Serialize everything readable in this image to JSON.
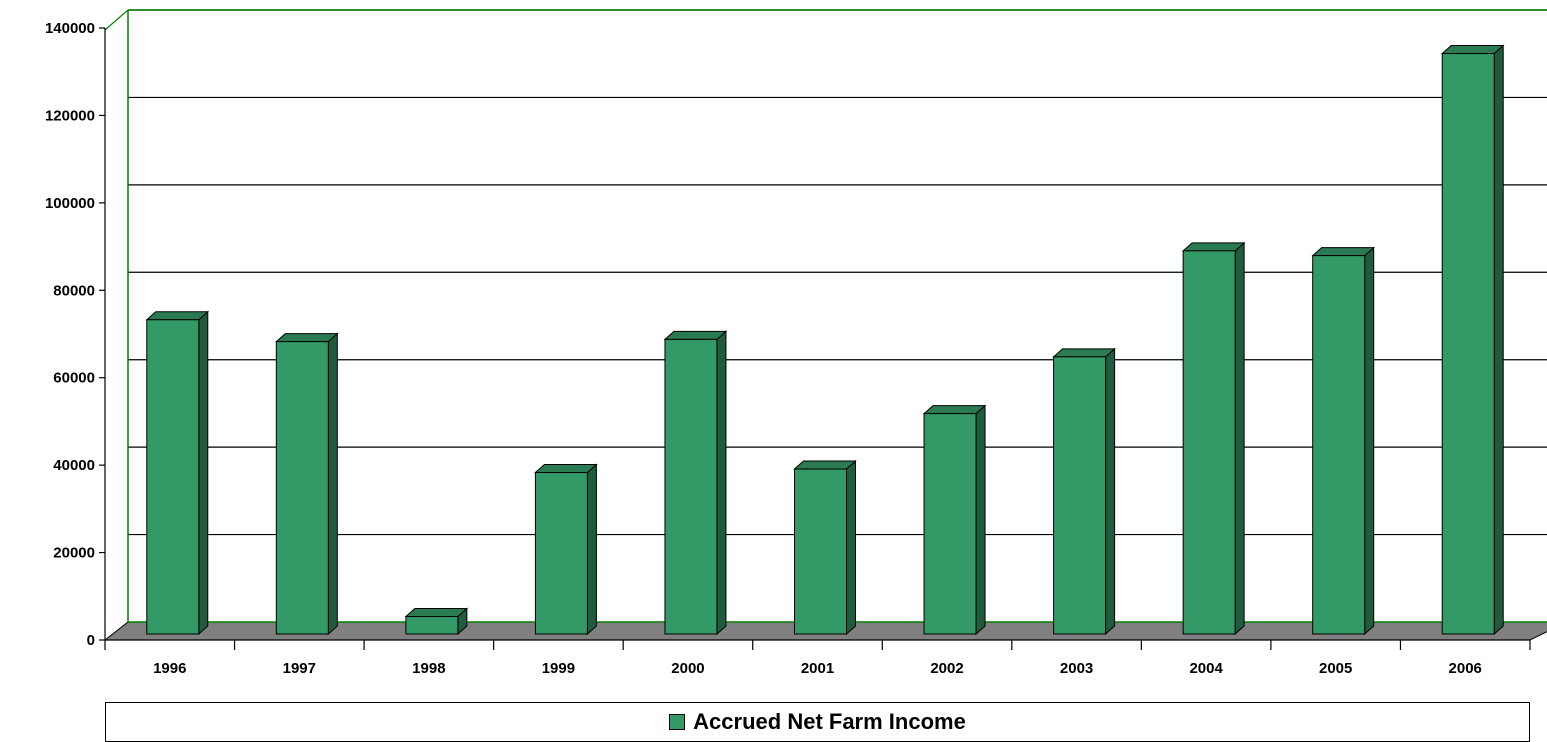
{
  "chart_data": {
    "type": "bar",
    "title": "",
    "xlabel": "",
    "ylabel": "",
    "categories": [
      "1996",
      "1997",
      "1998",
      "1999",
      "2000",
      "2001",
      "2002",
      "2003",
      "2004",
      "2005",
      "2006"
    ],
    "series": [
      {
        "name": "Accrued Net Farm  Income",
        "values": [
          72000,
          67000,
          4000,
          37000,
          67500,
          37800,
          50500,
          63500,
          87800,
          86700,
          133000
        ]
      }
    ],
    "ylim": [
      0,
      140000
    ],
    "yticks": [
      0,
      20000,
      40000,
      60000,
      80000,
      100000,
      120000,
      140000
    ],
    "grid": true,
    "three_d": true,
    "legend_position": "bottom",
    "colors": {
      "bar_front": "#339966",
      "bar_side": "#1f5c3d",
      "bar_top": "#2a7a52",
      "floor": "#808080",
      "wall": "#008000",
      "gridline": "#000000"
    }
  }
}
